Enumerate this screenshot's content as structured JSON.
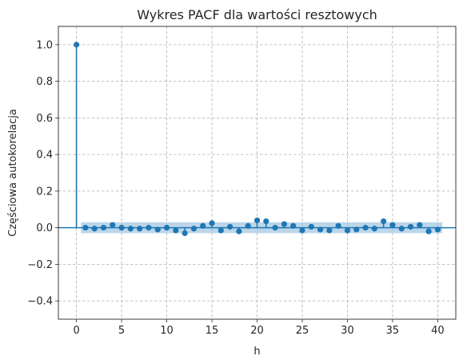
{
  "chart_data": {
    "type": "stem",
    "title": "Wykres PACF dla wartości resztowych",
    "xlabel": "h",
    "ylabel": "Częściowa autokorelacja",
    "xlim": [
      -2,
      42
    ],
    "ylim": [
      -0.5,
      1.1
    ],
    "xticks": [
      0,
      5,
      10,
      15,
      20,
      25,
      30,
      35,
      40
    ],
    "yticks": [
      -0.4,
      -0.2,
      0.0,
      0.2,
      0.4,
      0.6,
      0.8,
      1.0
    ],
    "ytick_labels": [
      "−0.4",
      "−0.2",
      "0.0",
      "0.2",
      "0.4",
      "0.6",
      "0.8",
      "1.0"
    ],
    "grid": true,
    "colors": {
      "series": "#1f77b4",
      "band": "#a6c8e3"
    },
    "confidence_band": {
      "x_range": [
        0.5,
        40.5
      ],
      "lower": -0.03,
      "upper": 0.03
    },
    "lags": [
      0,
      1,
      2,
      3,
      4,
      5,
      6,
      7,
      8,
      9,
      10,
      11,
      12,
      13,
      14,
      15,
      16,
      17,
      18,
      19,
      20,
      21,
      22,
      23,
      24,
      25,
      26,
      27,
      28,
      29,
      30,
      31,
      32,
      33,
      34,
      35,
      36,
      37,
      38,
      39,
      40
    ],
    "values": [
      1.0,
      0.0,
      -0.005,
      0.0,
      0.015,
      0.0,
      -0.005,
      -0.005,
      0.0,
      -0.01,
      0.0,
      -0.015,
      -0.03,
      -0.005,
      0.01,
      0.025,
      -0.015,
      0.005,
      -0.02,
      0.01,
      0.04,
      0.035,
      0.0,
      0.02,
      0.01,
      -0.015,
      0.005,
      -0.01,
      -0.015,
      0.01,
      -0.015,
      -0.01,
      0.0,
      -0.005,
      0.035,
      0.015,
      -0.005,
      0.005,
      0.015,
      -0.02,
      -0.01
    ]
  }
}
